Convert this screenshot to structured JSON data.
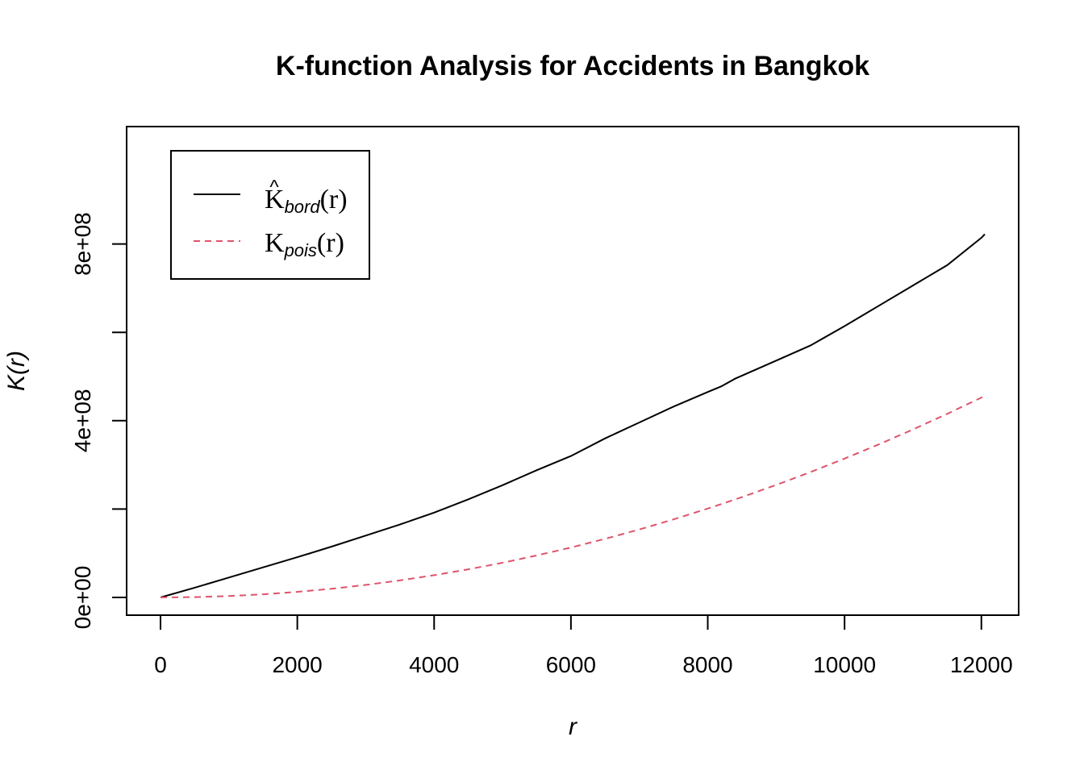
{
  "chart_data": {
    "type": "line",
    "title": "K-function Analysis for Accidents in Bangkok",
    "xlabel": "r",
    "ylabel": "K(r)",
    "xlim": [
      0,
      12050
    ],
    "ylim": [
      0,
      1000000000
    ],
    "x_ticks": [
      0,
      2000,
      4000,
      6000,
      8000,
      10000,
      12000
    ],
    "x_tick_labels": [
      "0",
      "2000",
      "4000",
      "6000",
      "8000",
      "10000",
      "12000"
    ],
    "y_ticks": [
      0,
      200000000,
      400000000,
      600000000,
      800000000
    ],
    "y_tick_labels": [
      "0e+00",
      "",
      "4e+08",
      "",
      "8e+08"
    ],
    "legend": {
      "position": "top-left",
      "entries": [
        {
          "main": "K",
          "hat": "^",
          "sub": "bord",
          "arg": "(r)"
        },
        {
          "main": "K",
          "hat": "",
          "sub": "pois",
          "arg": "(r)"
        }
      ]
    },
    "series": [
      {
        "name": "K̂bord(r)",
        "color": "#000000",
        "dash": "solid",
        "x": [
          0,
          500,
          1000,
          1500,
          2000,
          2500,
          3000,
          3500,
          4000,
          4500,
          5000,
          5500,
          6000,
          6500,
          7000,
          7500,
          8000,
          8200,
          8400,
          9000,
          9500,
          10000,
          10500,
          11000,
          11500,
          12000,
          12050
        ],
        "y": [
          0,
          22000000,
          45000000,
          68000000,
          91000000,
          115000000,
          140000000,
          165000000,
          192000000,
          222000000,
          254000000,
          288000000,
          320000000,
          360000000,
          396000000,
          432000000,
          465000000,
          478000000,
          495000000,
          536000000,
          570000000,
          614000000,
          660000000,
          706000000,
          752000000,
          814000000,
          822000000
        ]
      },
      {
        "name": "Kpois(r)",
        "color": "#DF536B",
        "dash": "dashed",
        "x": [
          0,
          500,
          1000,
          1500,
          2000,
          2500,
          3000,
          3500,
          4000,
          4500,
          5000,
          5500,
          6000,
          6500,
          7000,
          7500,
          8000,
          8500,
          9000,
          9500,
          10000,
          10500,
          11000,
          11500,
          12000,
          12050
        ],
        "y": [
          0,
          800000,
          3100000,
          7100000,
          12600000,
          19600000,
          28300000,
          38500000,
          50300000,
          63600000,
          78500000,
          95000000,
          113000000,
          132700000,
          153900000,
          176700000,
          201100000,
          227000000,
          254500000,
          283500000,
          314200000,
          346400000,
          380100000,
          415500000,
          452400000,
          456200000
        ]
      }
    ]
  }
}
